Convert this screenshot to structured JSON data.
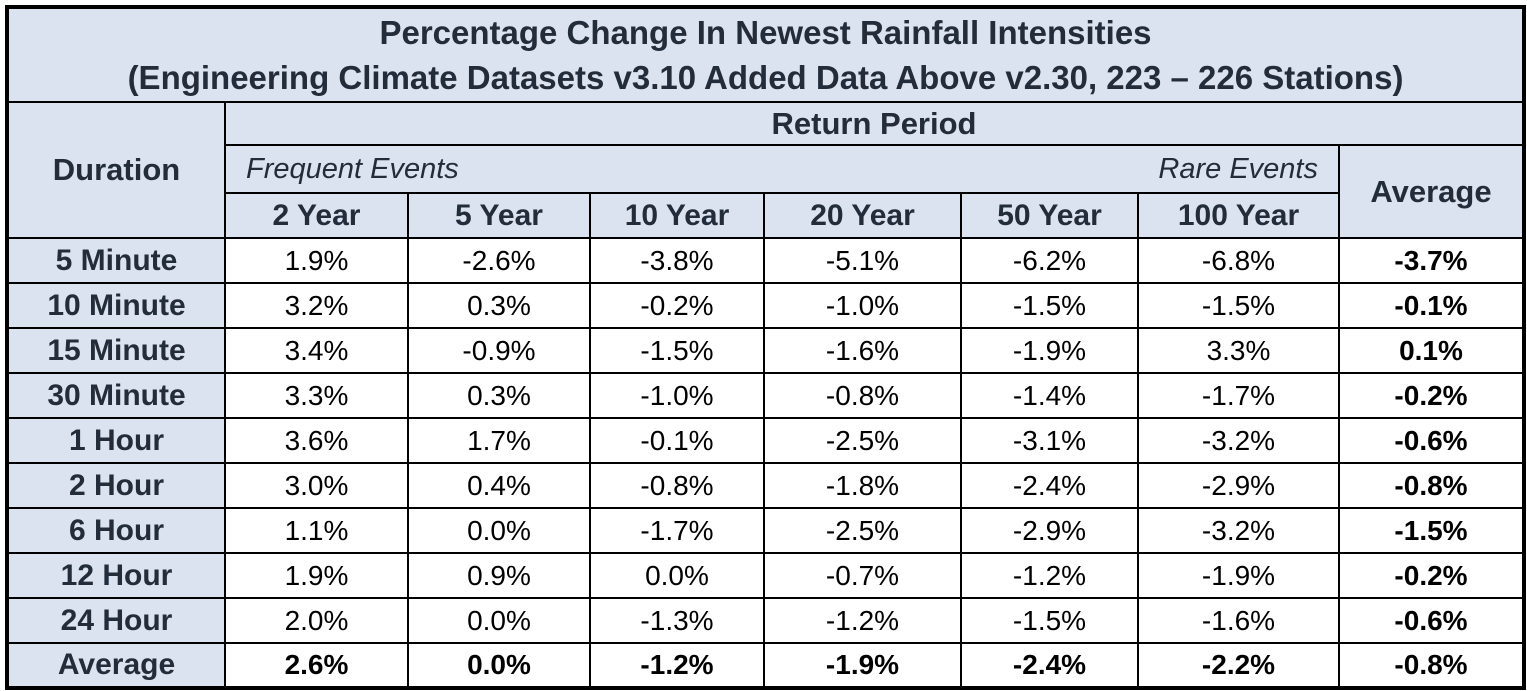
{
  "title": {
    "line1": "Percentage Change In Newest Rainfall Intensities",
    "line2": "(Engineering Climate Datasets v3.10 Added Data Above v2.30, 223 – 226 Stations)"
  },
  "header": {
    "duration_label": "Duration",
    "return_period_label": "Return Period",
    "frequent_label": "Frequent Events",
    "rare_label": "Rare Events",
    "average_label": "Average",
    "year_columns": [
      "2 Year",
      "5 Year",
      "10 Year",
      "20 Year",
      "50 Year",
      "100 Year"
    ]
  },
  "colors": {
    "header_background": "#dce3f0",
    "header_text": "#222c3a",
    "cell_background": "#ffffff",
    "cell_text": "#000000",
    "grid_border": "#000000"
  },
  "chart_data": {
    "type": "table",
    "title": "Percentage Change In Newest Rainfall Intensities (Engineering Climate Datasets v3.10 Added Data Above v2.30, 223 – 226 Stations)",
    "row_header": "Duration",
    "column_group_header": "Return Period",
    "column_subgroups": [
      "Frequent Events",
      "Rare Events"
    ],
    "columns": [
      "2 Year",
      "5 Year",
      "10 Year",
      "20 Year",
      "50 Year",
      "100 Year",
      "Average"
    ],
    "rows": [
      {
        "label": "5 Minute",
        "values": [
          "1.9%",
          "-2.6%",
          "-3.8%",
          "-5.1%",
          "-6.2%",
          "-6.8%"
        ],
        "average": "-3.7%"
      },
      {
        "label": "10 Minute",
        "values": [
          "3.2%",
          "0.3%",
          "-0.2%",
          "-1.0%",
          "-1.5%",
          "-1.5%"
        ],
        "average": "-0.1%"
      },
      {
        "label": "15 Minute",
        "values": [
          "3.4%",
          "-0.9%",
          "-1.5%",
          "-1.6%",
          "-1.9%",
          "3.3%"
        ],
        "average": "0.1%"
      },
      {
        "label": "30 Minute",
        "values": [
          "3.3%",
          "0.3%",
          "-1.0%",
          "-0.8%",
          "-1.4%",
          "-1.7%"
        ],
        "average": "-0.2%"
      },
      {
        "label": "1 Hour",
        "values": [
          "3.6%",
          "1.7%",
          "-0.1%",
          "-2.5%",
          "-3.1%",
          "-3.2%"
        ],
        "average": "-0.6%"
      },
      {
        "label": "2 Hour",
        "values": [
          "3.0%",
          "0.4%",
          "-0.8%",
          "-1.8%",
          "-2.4%",
          "-2.9%"
        ],
        "average": "-0.8%"
      },
      {
        "label": "6 Hour",
        "values": [
          "1.1%",
          "0.0%",
          "-1.7%",
          "-2.5%",
          "-2.9%",
          "-3.2%"
        ],
        "average": "-1.5%"
      },
      {
        "label": "12 Hour",
        "values": [
          "1.9%",
          "0.9%",
          "0.0%",
          "-0.7%",
          "-1.2%",
          "-1.9%"
        ],
        "average": "-0.2%"
      },
      {
        "label": "24 Hour",
        "values": [
          "2.0%",
          "0.0%",
          "-1.3%",
          "-1.2%",
          "-1.5%",
          "-1.6%"
        ],
        "average": "-0.6%"
      },
      {
        "label": "Average",
        "values": [
          "2.6%",
          "0.0%",
          "-1.2%",
          "-1.9%",
          "-2.4%",
          "-2.2%"
        ],
        "average": "-0.8%"
      }
    ]
  }
}
